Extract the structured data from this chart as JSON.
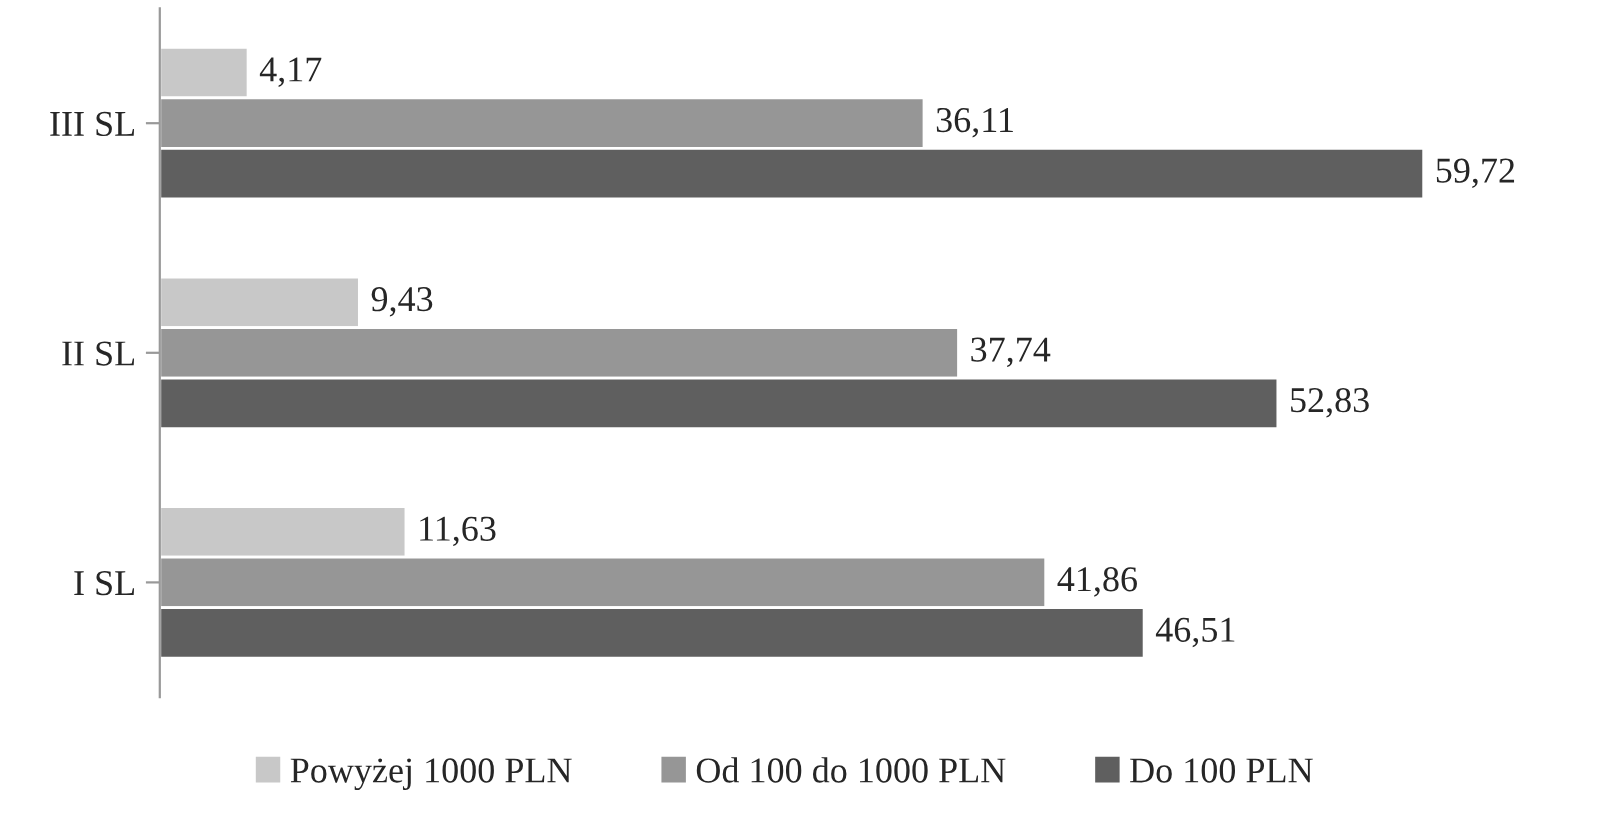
{
  "chart_data": {
    "type": "bar",
    "orientation": "horizontal",
    "categories": [
      "III SL",
      "II SL",
      "I SL"
    ],
    "series": [
      {
        "name": "Powyżej 1000 PLN",
        "color": "#c8c8c8",
        "values": [
          4.17,
          9.43,
          11.63
        ],
        "value_labels": [
          "4,17",
          "9,43",
          "11,63"
        ]
      },
      {
        "name": "Od 100 do 1000 PLN",
        "color": "#969696",
        "values": [
          36.11,
          37.74,
          41.86
        ],
        "value_labels": [
          "36,11",
          "37,74",
          "41,86"
        ]
      },
      {
        "name": "Do 100 PLN",
        "color": "#5f5f5f",
        "values": [
          59.72,
          52.83,
          46.51
        ],
        "value_labels": [
          "59,72",
          "52,83",
          "46,51"
        ]
      }
    ],
    "legend": "bottom",
    "tick_labels": "y"
  }
}
